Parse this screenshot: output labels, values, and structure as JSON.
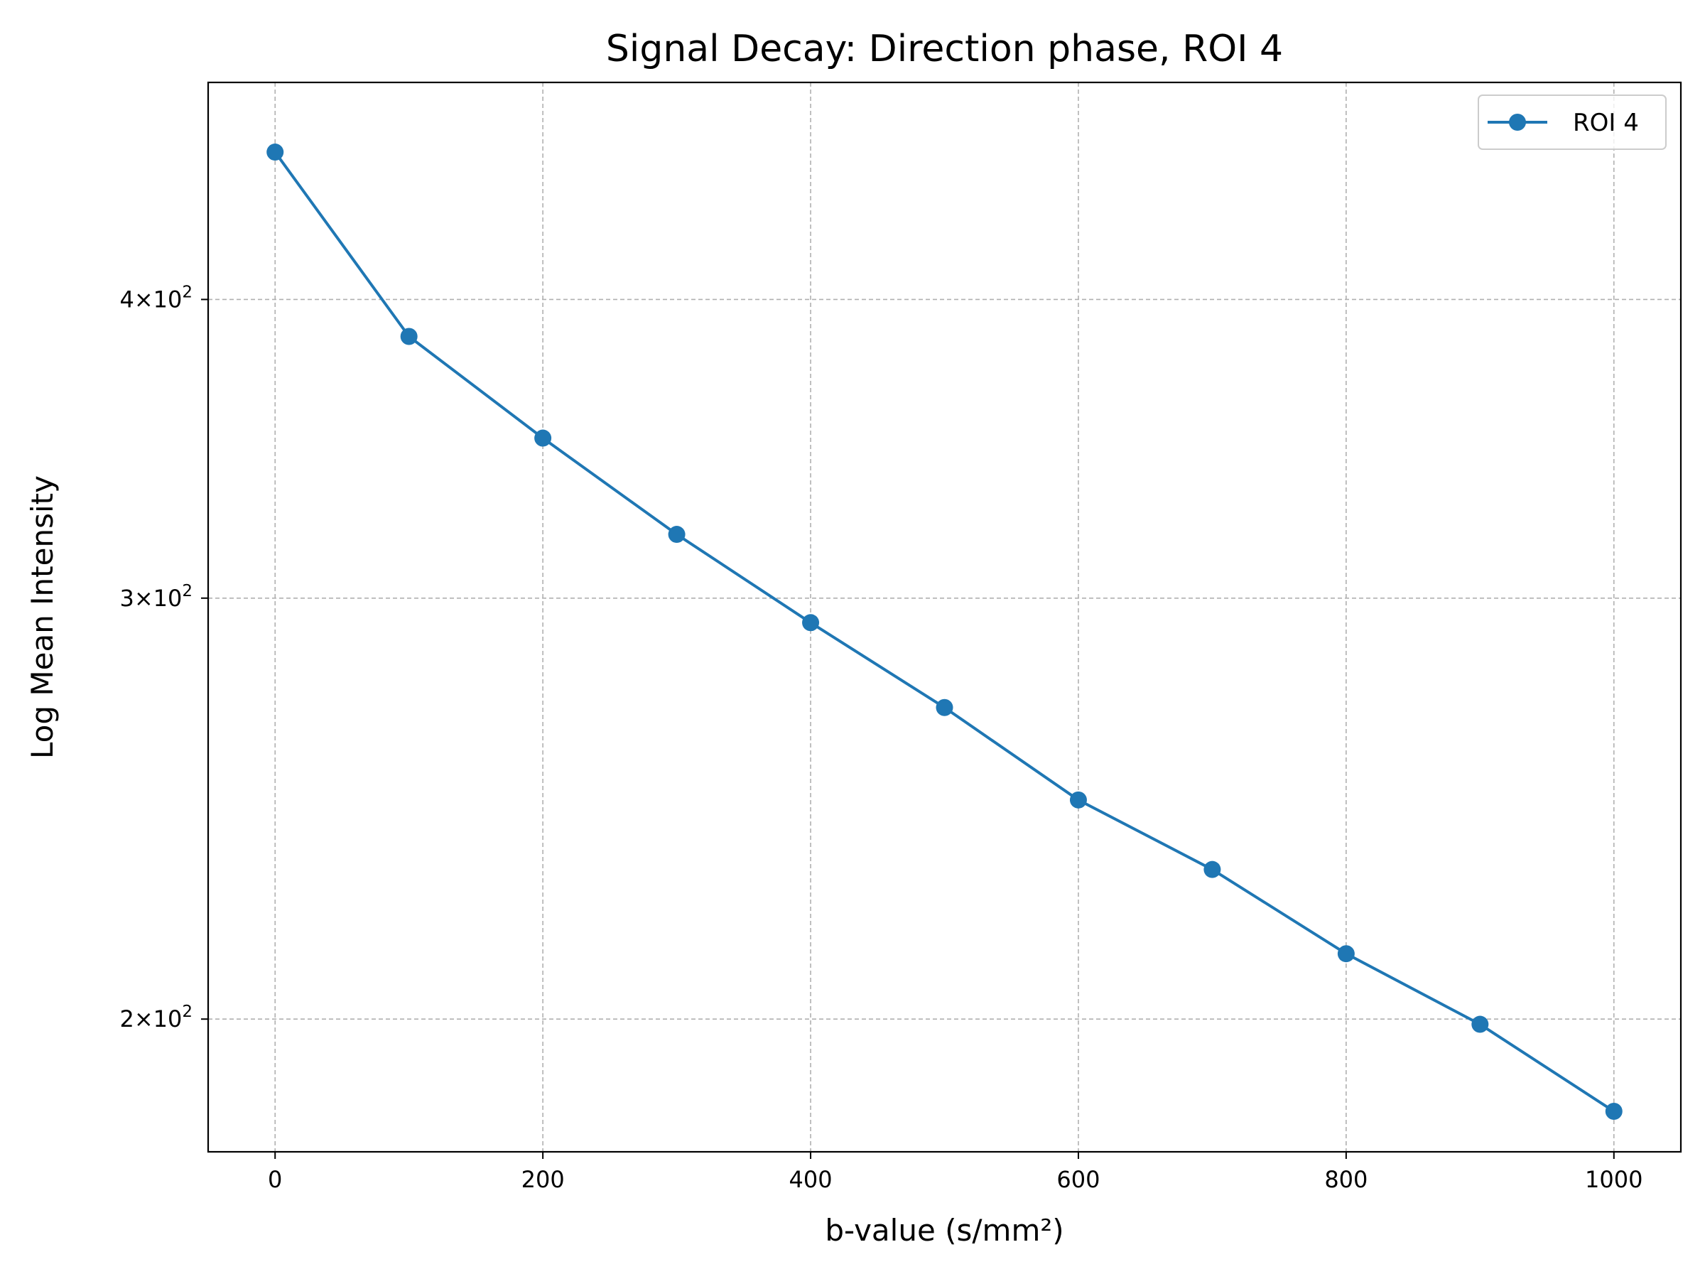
{
  "chart_data": {
    "type": "line",
    "title": "Signal Decay: Direction phase, ROI 4",
    "xlabel": "b-value (s/mm²)",
    "ylabel": "Log Mean Intensity",
    "yscale": "log",
    "xlim": [
      -50,
      1050
    ],
    "ylim": [
      176,
      493
    ],
    "grid": true,
    "legend_position": "top-right",
    "x": [
      0,
      100,
      200,
      300,
      400,
      500,
      600,
      700,
      800,
      900,
      1000
    ],
    "x_ticks": [
      {
        "value": 0,
        "label": "0"
      },
      {
        "value": 200,
        "label": "200"
      },
      {
        "value": 400,
        "label": "400"
      },
      {
        "value": 600,
        "label": "600"
      },
      {
        "value": 800,
        "label": "800"
      },
      {
        "value": 1000,
        "label": "1000"
      }
    ],
    "y_ticks": [
      {
        "value": 200,
        "mantissa": "2",
        "base": "10",
        "exp": "2"
      },
      {
        "value": 300,
        "mantissa": "3",
        "base": "10",
        "exp": "2"
      },
      {
        "value": 400,
        "mantissa": "4",
        "base": "10",
        "exp": "2"
      }
    ],
    "series": [
      {
        "name": "ROI 4",
        "color": "#1f77b4",
        "marker": "circle",
        "values": [
          461,
          386,
          350,
          319,
          293,
          270,
          247,
          231,
          213,
          199,
          183
        ]
      }
    ]
  }
}
